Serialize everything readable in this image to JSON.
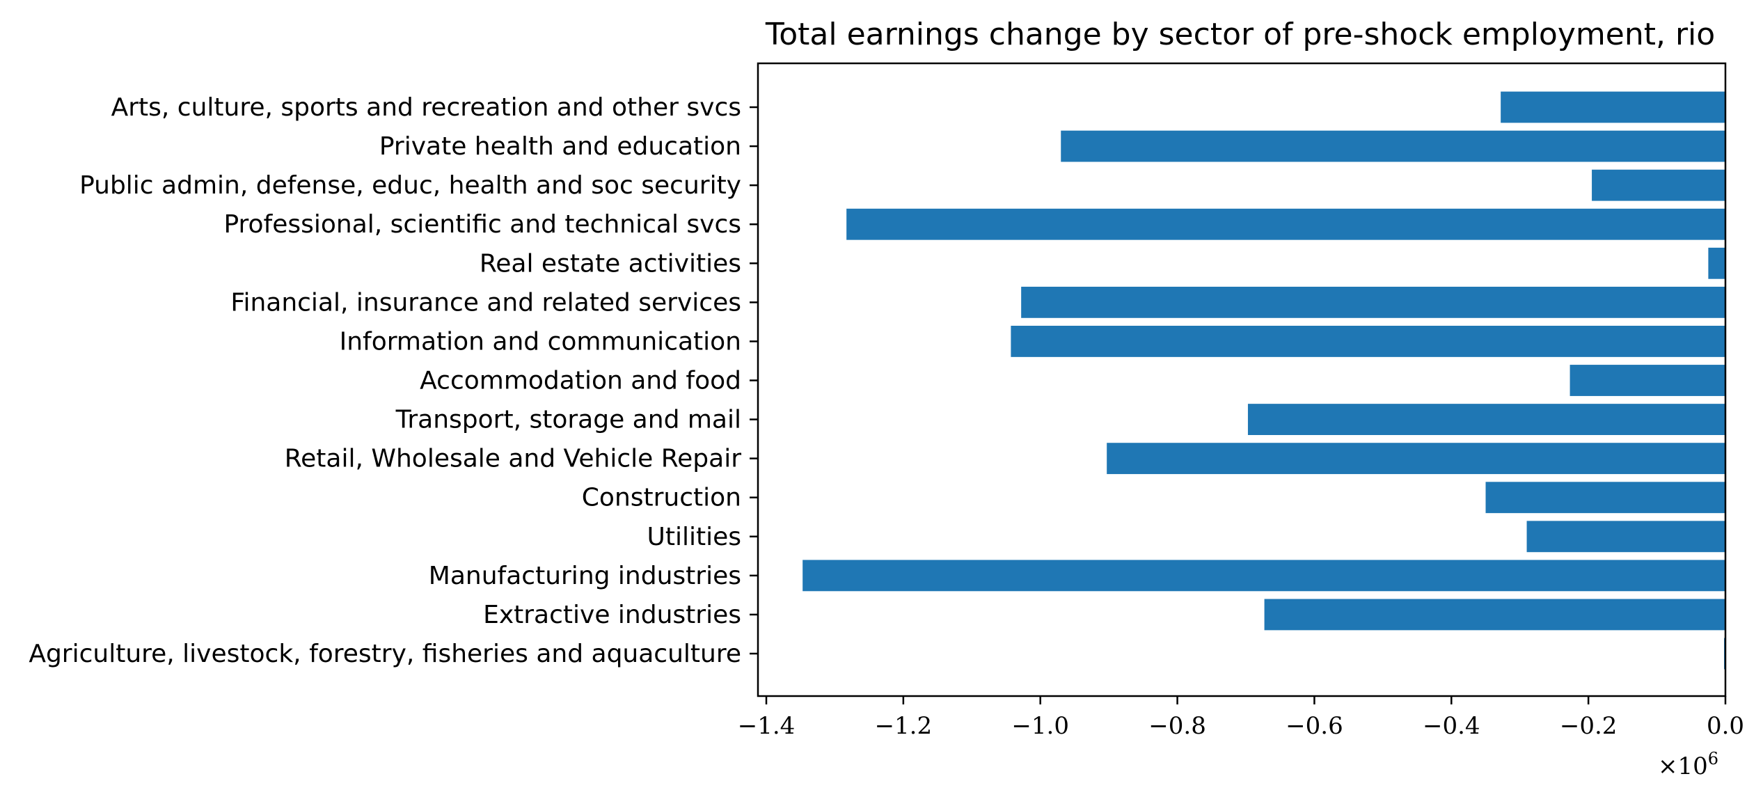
{
  "chart_data": {
    "type": "bar",
    "orientation": "horizontal",
    "title": "Total earnings change by sector of pre-shock employment, rio",
    "xlabel": "",
    "ylabel": "",
    "x_offset_label": "×10",
    "x_offset_exponent": "6",
    "xlim": [
      -1.4,
      0.0
    ],
    "xticks": [
      -1.4,
      -1.2,
      -1.0,
      -0.8,
      -0.6,
      -0.4,
      -0.2,
      0.0
    ],
    "xtick_labels": [
      "−1.4",
      "−1.2",
      "−1.0",
      "−0.8",
      "−0.6",
      "−0.4",
      "−0.2",
      "0.0"
    ],
    "grid": false,
    "legend": "none",
    "bar_color": "#1f77b4",
    "categories": [
      "Arts, culture, sports and recreation and other svcs",
      "Private health and education",
      "Public admin, defense, educ, health and soc security",
      "Professional, scientific and technical svcs",
      "Real estate activities",
      "Financial, insurance and related services",
      "Information and communication",
      "Accommodation and food",
      "Transport, storage and mail",
      "Retail, Wholesale and Vehicle Repair",
      "Construction",
      "Utilities",
      "Manufacturing industries",
      "Extractive industries",
      "Agriculture, livestock, forestry, fisheries and aquaculture"
    ],
    "values": [
      -0.328,
      -0.97,
      -0.195,
      -1.283,
      -0.025,
      -1.028,
      -1.043,
      -0.227,
      -0.697,
      -0.903,
      -0.35,
      -0.29,
      -1.347,
      -0.673,
      -0.002
    ]
  }
}
